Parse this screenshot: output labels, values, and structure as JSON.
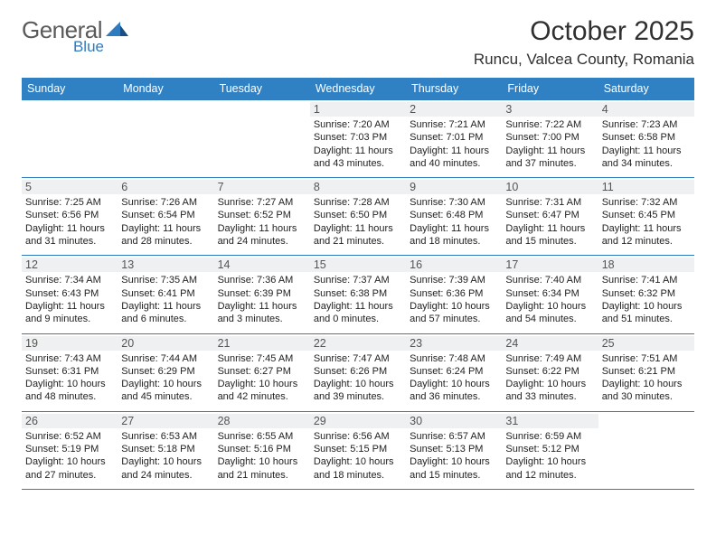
{
  "logo": {
    "general": "General",
    "blue": "Blue"
  },
  "title": "October 2025",
  "location": "Runcu, Valcea County, Romania",
  "colors": {
    "header_bg": "#3080c4",
    "header_fg": "#ffffff",
    "border": "#2f7bc0",
    "daynum_bg": "#eef0f1",
    "daynum_fg": "#555555",
    "title_fg": "#303030",
    "logo_general": "#5a5a5a",
    "logo_blue": "#2f7bc0"
  },
  "day_headers": [
    "Sunday",
    "Monday",
    "Tuesday",
    "Wednesday",
    "Thursday",
    "Friday",
    "Saturday"
  ],
  "weeks": [
    [
      {
        "n": "",
        "sr": "",
        "ss": "",
        "dl": ""
      },
      {
        "n": "",
        "sr": "",
        "ss": "",
        "dl": ""
      },
      {
        "n": "",
        "sr": "",
        "ss": "",
        "dl": ""
      },
      {
        "n": "1",
        "sr": "Sunrise: 7:20 AM",
        "ss": "Sunset: 7:03 PM",
        "dl": "Daylight: 11 hours and 43 minutes."
      },
      {
        "n": "2",
        "sr": "Sunrise: 7:21 AM",
        "ss": "Sunset: 7:01 PM",
        "dl": "Daylight: 11 hours and 40 minutes."
      },
      {
        "n": "3",
        "sr": "Sunrise: 7:22 AM",
        "ss": "Sunset: 7:00 PM",
        "dl": "Daylight: 11 hours and 37 minutes."
      },
      {
        "n": "4",
        "sr": "Sunrise: 7:23 AM",
        "ss": "Sunset: 6:58 PM",
        "dl": "Daylight: 11 hours and 34 minutes."
      }
    ],
    [
      {
        "n": "5",
        "sr": "Sunrise: 7:25 AM",
        "ss": "Sunset: 6:56 PM",
        "dl": "Daylight: 11 hours and 31 minutes."
      },
      {
        "n": "6",
        "sr": "Sunrise: 7:26 AM",
        "ss": "Sunset: 6:54 PM",
        "dl": "Daylight: 11 hours and 28 minutes."
      },
      {
        "n": "7",
        "sr": "Sunrise: 7:27 AM",
        "ss": "Sunset: 6:52 PM",
        "dl": "Daylight: 11 hours and 24 minutes."
      },
      {
        "n": "8",
        "sr": "Sunrise: 7:28 AM",
        "ss": "Sunset: 6:50 PM",
        "dl": "Daylight: 11 hours and 21 minutes."
      },
      {
        "n": "9",
        "sr": "Sunrise: 7:30 AM",
        "ss": "Sunset: 6:48 PM",
        "dl": "Daylight: 11 hours and 18 minutes."
      },
      {
        "n": "10",
        "sr": "Sunrise: 7:31 AM",
        "ss": "Sunset: 6:47 PM",
        "dl": "Daylight: 11 hours and 15 minutes."
      },
      {
        "n": "11",
        "sr": "Sunrise: 7:32 AM",
        "ss": "Sunset: 6:45 PM",
        "dl": "Daylight: 11 hours and 12 minutes."
      }
    ],
    [
      {
        "n": "12",
        "sr": "Sunrise: 7:34 AM",
        "ss": "Sunset: 6:43 PM",
        "dl": "Daylight: 11 hours and 9 minutes."
      },
      {
        "n": "13",
        "sr": "Sunrise: 7:35 AM",
        "ss": "Sunset: 6:41 PM",
        "dl": "Daylight: 11 hours and 6 minutes."
      },
      {
        "n": "14",
        "sr": "Sunrise: 7:36 AM",
        "ss": "Sunset: 6:39 PM",
        "dl": "Daylight: 11 hours and 3 minutes."
      },
      {
        "n": "15",
        "sr": "Sunrise: 7:37 AM",
        "ss": "Sunset: 6:38 PM",
        "dl": "Daylight: 11 hours and 0 minutes."
      },
      {
        "n": "16",
        "sr": "Sunrise: 7:39 AM",
        "ss": "Sunset: 6:36 PM",
        "dl": "Daylight: 10 hours and 57 minutes."
      },
      {
        "n": "17",
        "sr": "Sunrise: 7:40 AM",
        "ss": "Sunset: 6:34 PM",
        "dl": "Daylight: 10 hours and 54 minutes."
      },
      {
        "n": "18",
        "sr": "Sunrise: 7:41 AM",
        "ss": "Sunset: 6:32 PM",
        "dl": "Daylight: 10 hours and 51 minutes."
      }
    ],
    [
      {
        "n": "19",
        "sr": "Sunrise: 7:43 AM",
        "ss": "Sunset: 6:31 PM",
        "dl": "Daylight: 10 hours and 48 minutes."
      },
      {
        "n": "20",
        "sr": "Sunrise: 7:44 AM",
        "ss": "Sunset: 6:29 PM",
        "dl": "Daylight: 10 hours and 45 minutes."
      },
      {
        "n": "21",
        "sr": "Sunrise: 7:45 AM",
        "ss": "Sunset: 6:27 PM",
        "dl": "Daylight: 10 hours and 42 minutes."
      },
      {
        "n": "22",
        "sr": "Sunrise: 7:47 AM",
        "ss": "Sunset: 6:26 PM",
        "dl": "Daylight: 10 hours and 39 minutes."
      },
      {
        "n": "23",
        "sr": "Sunrise: 7:48 AM",
        "ss": "Sunset: 6:24 PM",
        "dl": "Daylight: 10 hours and 36 minutes."
      },
      {
        "n": "24",
        "sr": "Sunrise: 7:49 AM",
        "ss": "Sunset: 6:22 PM",
        "dl": "Daylight: 10 hours and 33 minutes."
      },
      {
        "n": "25",
        "sr": "Sunrise: 7:51 AM",
        "ss": "Sunset: 6:21 PM",
        "dl": "Daylight: 10 hours and 30 minutes."
      }
    ],
    [
      {
        "n": "26",
        "sr": "Sunrise: 6:52 AM",
        "ss": "Sunset: 5:19 PM",
        "dl": "Daylight: 10 hours and 27 minutes."
      },
      {
        "n": "27",
        "sr": "Sunrise: 6:53 AM",
        "ss": "Sunset: 5:18 PM",
        "dl": "Daylight: 10 hours and 24 minutes."
      },
      {
        "n": "28",
        "sr": "Sunrise: 6:55 AM",
        "ss": "Sunset: 5:16 PM",
        "dl": "Daylight: 10 hours and 21 minutes."
      },
      {
        "n": "29",
        "sr": "Sunrise: 6:56 AM",
        "ss": "Sunset: 5:15 PM",
        "dl": "Daylight: 10 hours and 18 minutes."
      },
      {
        "n": "30",
        "sr": "Sunrise: 6:57 AM",
        "ss": "Sunset: 5:13 PM",
        "dl": "Daylight: 10 hours and 15 minutes."
      },
      {
        "n": "31",
        "sr": "Sunrise: 6:59 AM",
        "ss": "Sunset: 5:12 PM",
        "dl": "Daylight: 10 hours and 12 minutes."
      },
      {
        "n": "",
        "sr": "",
        "ss": "",
        "dl": ""
      }
    ]
  ]
}
